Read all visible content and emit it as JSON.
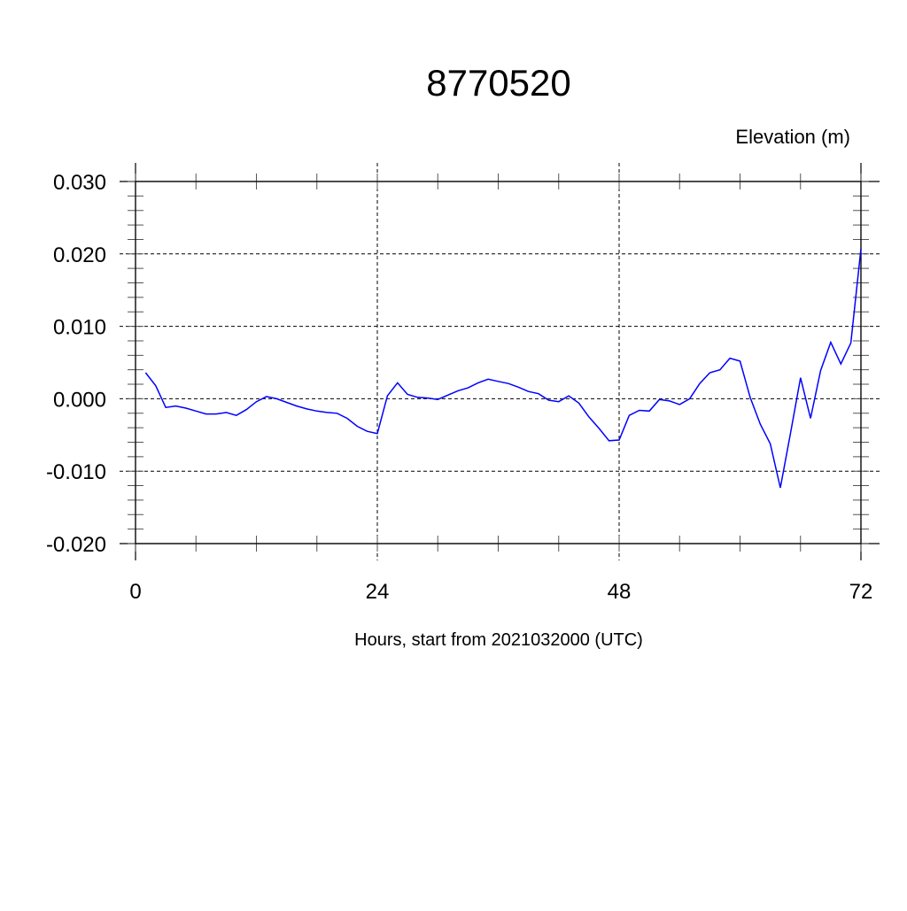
{
  "chart_data": {
    "type": "line",
    "title": "8770520",
    "ylabel": "Elevation (m)",
    "xlabel": "Hours, start from 2021032000 (UTC)",
    "xlim": [
      0,
      72
    ],
    "ylim": [
      -0.02,
      0.03
    ],
    "x_ticks": [
      0,
      24,
      48,
      72
    ],
    "x_tick_labels": [
      "0",
      "24",
      "48",
      "72"
    ],
    "y_ticks": [
      -0.02,
      -0.01,
      0.0,
      0.01,
      0.02,
      0.03
    ],
    "y_tick_labels": [
      "-0.020",
      "-0.010",
      "0.000",
      "0.010",
      "0.020",
      "0.030"
    ],
    "grid": true,
    "line_color": "#0000ff",
    "series": [
      {
        "x": [
          1,
          2,
          3,
          4,
          5,
          6,
          7,
          8,
          9,
          10,
          11,
          12,
          13,
          14,
          15,
          16,
          17,
          18,
          19,
          20,
          21,
          22,
          23,
          24,
          25,
          26,
          27,
          28,
          29,
          30,
          31,
          32,
          33,
          34,
          35,
          36,
          37,
          38,
          39,
          40,
          41,
          42,
          43,
          44,
          45,
          46,
          47,
          48,
          49,
          50,
          51,
          52,
          53,
          54,
          55,
          56,
          57,
          58,
          59,
          60,
          61,
          62,
          63,
          64,
          65,
          66,
          67,
          68,
          69,
          70,
          71,
          72
        ],
        "values": [
          0.0036,
          0.0018,
          -0.0012,
          -0.001,
          -0.0013,
          -0.0017,
          -0.0021,
          -0.0021,
          -0.0019,
          -0.0023,
          -0.0015,
          -0.0004,
          0.0003,
          0.0,
          -0.0005,
          -0.001,
          -0.0014,
          -0.0017,
          -0.0019,
          -0.002,
          -0.0027,
          -0.0038,
          -0.0045,
          -0.0048,
          0.0004,
          0.0022,
          0.0006,
          0.0002,
          0.0001,
          -0.0001,
          0.0005,
          0.0011,
          0.0015,
          0.0022,
          0.0027,
          0.0024,
          0.0021,
          0.0016,
          0.001,
          0.0007,
          -0.0002,
          -0.0004,
          0.0004,
          -0.0006,
          -0.0025,
          -0.0041,
          -0.0058,
          -0.0057,
          -0.0023,
          -0.0016,
          -0.0017,
          -0.0001,
          -0.0003,
          -0.0008,
          0.0,
          0.0021,
          0.0036,
          0.004,
          0.0056,
          0.0052,
          0.0002,
          -0.0035,
          -0.0062,
          -0.0123,
          -0.0048,
          0.0029,
          -0.0027,
          0.0039,
          0.0078,
          0.0048,
          0.0077,
          0.0207
        ]
      }
    ]
  }
}
